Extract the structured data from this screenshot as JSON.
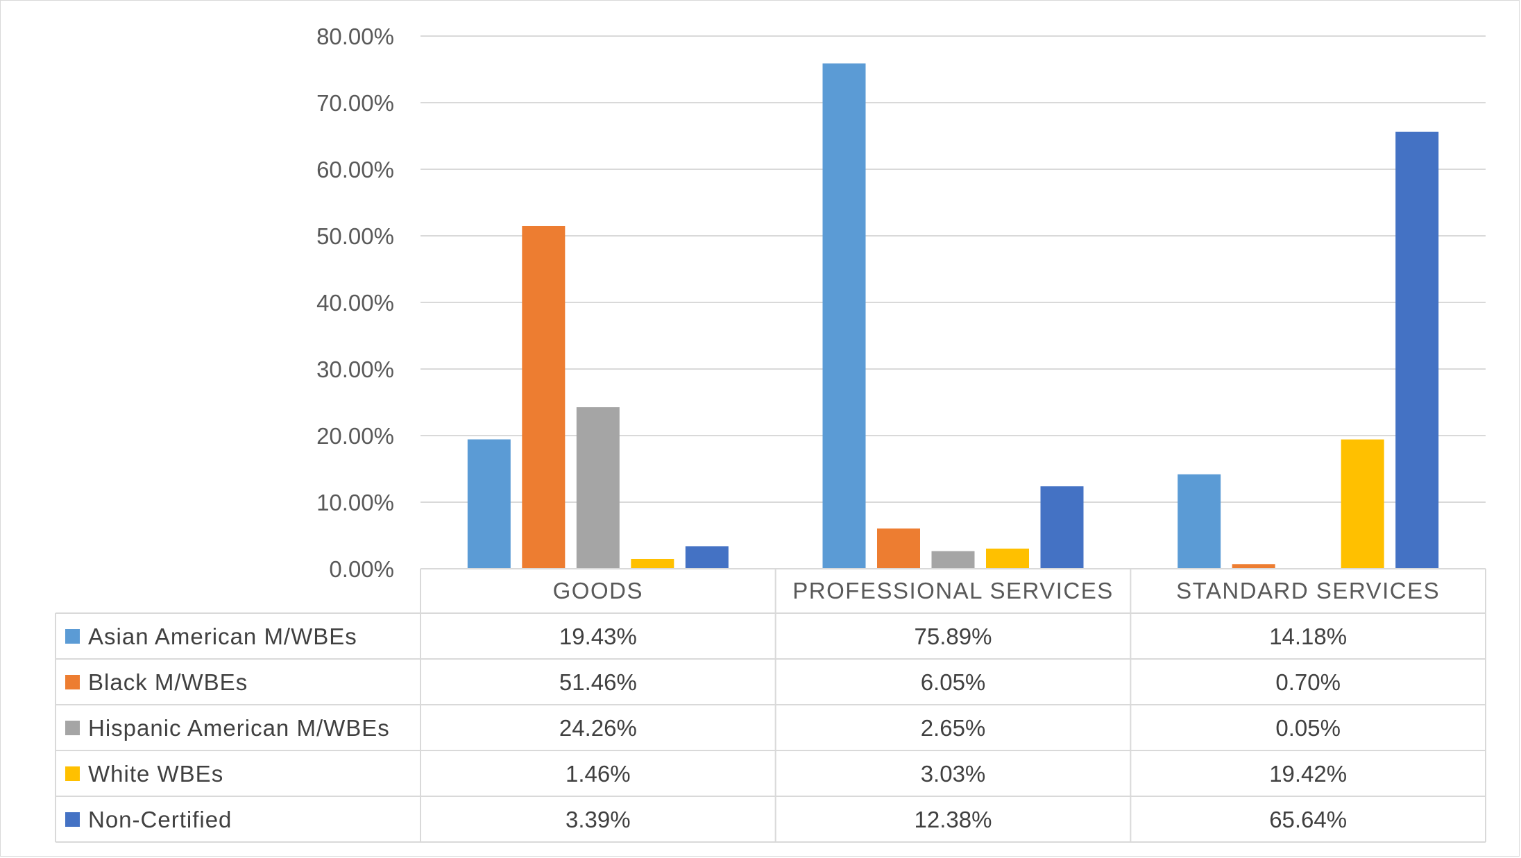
{
  "chart_data": {
    "type": "bar",
    "title": "",
    "xlabel": "",
    "ylabel": "",
    "categories": [
      "GOODS",
      "PROFESSIONAL SERVICES",
      "STANDARD SERVICES"
    ],
    "ylim": [
      0,
      80
    ],
    "y_ticks": [
      "0.00%",
      "10.00%",
      "20.00%",
      "30.00%",
      "40.00%",
      "50.00%",
      "60.00%",
      "70.00%",
      "80.00%"
    ],
    "y_tick_values": [
      0,
      10,
      20,
      30,
      40,
      50,
      60,
      70,
      80
    ],
    "grid": true,
    "legend": "data-table",
    "series": [
      {
        "name": "Asian American M/WBEs",
        "color": "#5B9BD5",
        "values": [
          19.43,
          75.89,
          14.18
        ],
        "labels": [
          "19.43%",
          "75.89%",
          "14.18%"
        ]
      },
      {
        "name": "Black M/WBEs",
        "color": "#ED7D31",
        "values": [
          51.46,
          6.05,
          0.7
        ],
        "labels": [
          "51.46%",
          "6.05%",
          "0.70%"
        ]
      },
      {
        "name": "Hispanic American M/WBEs",
        "color": "#A5A5A5",
        "values": [
          24.26,
          2.65,
          0.05
        ],
        "labels": [
          "24.26%",
          "2.65%",
          "0.05%"
        ]
      },
      {
        "name": "White WBEs",
        "color": "#FFC000",
        "values": [
          1.46,
          3.03,
          19.42
        ],
        "labels": [
          "1.46%",
          "3.03%",
          "19.42%"
        ]
      },
      {
        "name": "Non-Certified",
        "color": "#4472C4",
        "values": [
          3.39,
          12.38,
          65.64
        ],
        "labels": [
          "3.39%",
          "12.38%",
          "65.64%"
        ]
      }
    ]
  }
}
